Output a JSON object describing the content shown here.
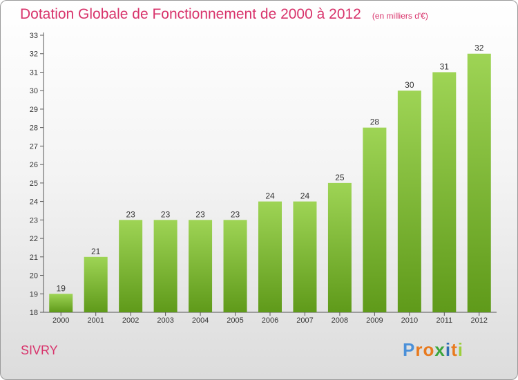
{
  "title": "Dotation Globale de Fonctionnement de 2000 à 2012",
  "subtitle": "(en milliers d'€)",
  "city": "SIVRY",
  "logo": {
    "text": "Proxiti",
    "letters": [
      {
        "ch": "P",
        "color": "#4a90d9"
      },
      {
        "ch": "r",
        "color": "#e87a1e"
      },
      {
        "ch": "o",
        "color": "#e87a1e"
      },
      {
        "ch": "x",
        "color": "#3aa53a"
      },
      {
        "ch": "i",
        "color": "#2f6fb5"
      },
      {
        "ch": "t",
        "color": "#e87a1e"
      },
      {
        "ch": "i",
        "color": "#9ccf3c"
      }
    ]
  },
  "colors": {
    "bar_top": "#9ed455",
    "bar_bottom": "#5f9a1a",
    "accent": "#d8336b"
  },
  "chart_data": {
    "type": "bar",
    "categories": [
      "2000",
      "2001",
      "2002",
      "2003",
      "2004",
      "2005",
      "2006",
      "2007",
      "2008",
      "2009",
      "2010",
      "2011",
      "2012"
    ],
    "values": [
      19,
      21,
      23,
      23,
      23,
      23,
      24,
      24,
      25,
      28,
      30,
      31,
      32
    ],
    "data_labels": [
      "19",
      "21",
      "23",
      "23",
      "23",
      "23",
      "24",
      "24",
      "25",
      "28",
      "30",
      "31",
      "32"
    ],
    "title": "Dotation Globale de Fonctionnement de 2000 à 2012",
    "subtitle": "(en milliers d'€)",
    "xlabel": "",
    "ylabel": "",
    "ylim": [
      18,
      33
    ],
    "yticks": [
      18,
      19,
      20,
      21,
      22,
      23,
      24,
      25,
      26,
      27,
      28,
      29,
      30,
      31,
      32,
      33
    ],
    "grid": false
  }
}
